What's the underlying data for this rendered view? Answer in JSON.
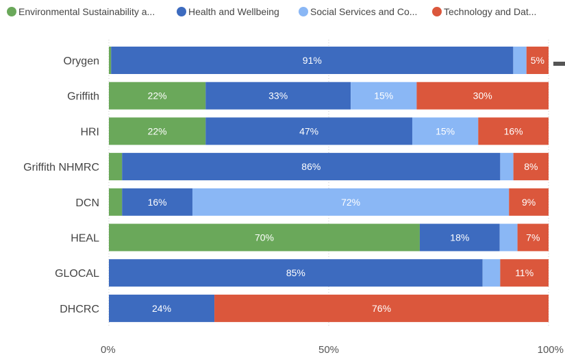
{
  "chart_data": {
    "type": "bar",
    "orientation": "horizontal",
    "stacked": "percent",
    "title": "",
    "xlabel": "",
    "ylabel": "",
    "xlim": [
      0,
      100
    ],
    "x_ticks": [
      "0%",
      "50%",
      "100%"
    ],
    "grid": true,
    "legend_position": "top-left",
    "categories": [
      "Orygen",
      "Griffith",
      "HRI",
      "Griffith NHMRC",
      "DCN",
      "HEAL",
      "GLOCAL",
      "DHCRC"
    ],
    "series": [
      {
        "name": "Environmental Sustainability a...",
        "color": "#6aa85a",
        "values": [
          0.5,
          22,
          22,
          3,
          3,
          70,
          0,
          0
        ],
        "labels": [
          "",
          "22%",
          "22%",
          "",
          "",
          "70%",
          "",
          ""
        ]
      },
      {
        "name": "Health and Wellbeing",
        "color": "#3d6bbf",
        "values": [
          91,
          33,
          47,
          86,
          16,
          18,
          85,
          24
        ],
        "labels": [
          "91%",
          "33%",
          "47%",
          "86%",
          "16%",
          "18%",
          "85%",
          "24%"
        ]
      },
      {
        "name": "Social Services and Co...",
        "color": "#8ab7f5",
        "values": [
          3,
          15,
          15,
          3,
          72,
          4,
          4,
          0
        ],
        "labels": [
          "",
          "15%",
          "15%",
          "",
          "72%",
          "",
          "",
          ""
        ]
      },
      {
        "name": "Technology and Dat...",
        "color": "#db573c",
        "values": [
          5,
          30,
          16,
          8,
          9,
          7,
          11,
          76
        ],
        "labels": [
          "5%",
          "30%",
          "16%",
          "8%",
          "9%",
          "7%",
          "11%",
          "76%"
        ]
      }
    ]
  }
}
